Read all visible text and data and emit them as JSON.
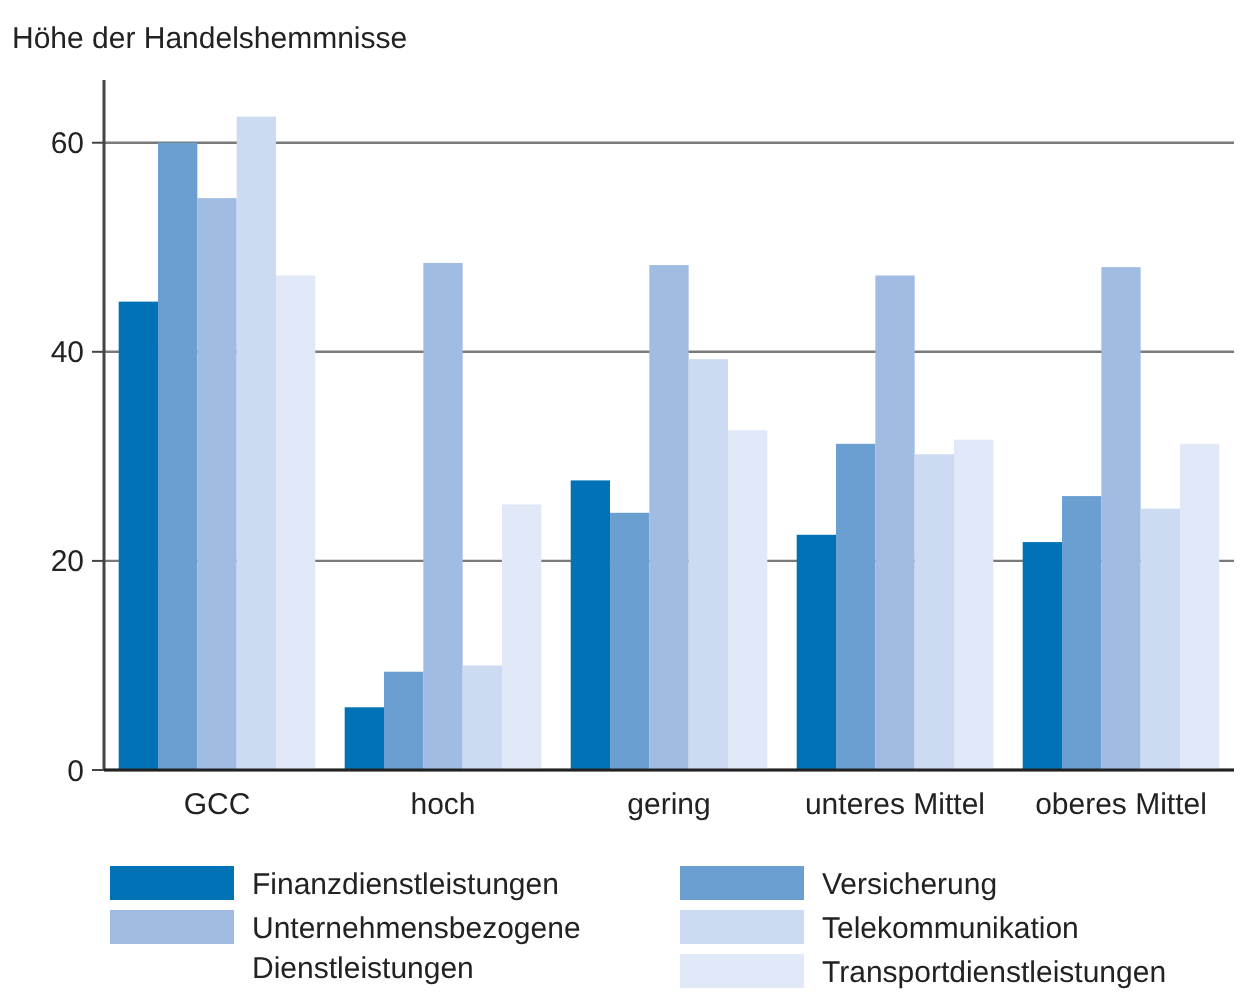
{
  "chart_data": {
    "type": "bar",
    "ylabel": "Höhe der Handelshemmnisse",
    "categories": [
      "GCC",
      "hoch",
      "gering",
      "unteres Mittel",
      "oberes Mittel"
    ],
    "series": [
      {
        "name": "Finanzdienstleistungen",
        "color": "#0072b5",
        "values": [
          44.8,
          6.0,
          27.7,
          22.5,
          21.8
        ]
      },
      {
        "name": "Versicherung",
        "color": "#6b9fd2",
        "values": [
          60,
          9.4,
          24.6,
          31.2,
          26.2
        ]
      },
      {
        "name": "Unternehmensbezogene Dienstleistungen",
        "color": "#a0bce3",
        "values": [
          54.7,
          48.5,
          48.3,
          47.3,
          48.1
        ]
      },
      {
        "name": "Telekommunikation",
        "color": "#ccdaf2",
        "values": [
          62.5,
          10.0,
          39.3,
          30.2,
          25.0
        ]
      },
      {
        "name": "Transportdienstleistungen",
        "color": "#e1e8f7",
        "values": [
          47.3,
          25.4,
          32.5,
          31.6,
          31.2
        ]
      }
    ],
    "ylim": [
      0,
      66
    ],
    "yticks": [
      0,
      20,
      40,
      60
    ],
    "grid": "y",
    "legend": "bottom"
  }
}
